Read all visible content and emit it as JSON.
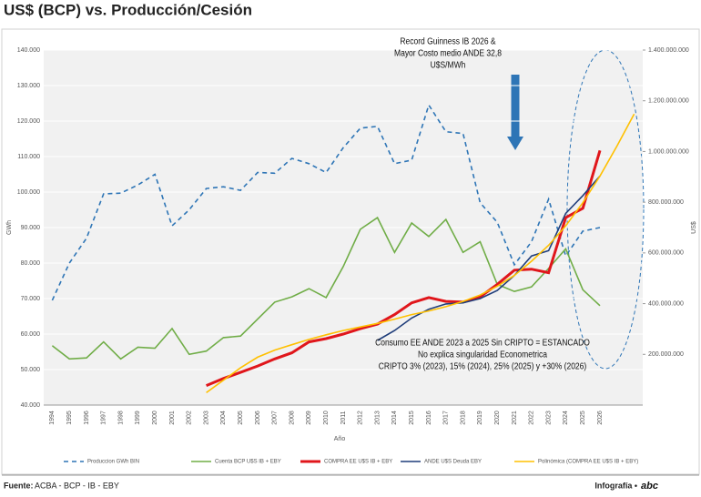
{
  "chart_data": {
    "type": "line",
    "title": "US$ (BCP) vs. Producción/Cesión",
    "ylabel": "GWh",
    "y2label": "US$",
    "xlabel": "Año",
    "categories": [
      "1994",
      "1995",
      "1996",
      "1997",
      "1998",
      "1999",
      "2000",
      "2001",
      "2002",
      "2003",
      "2004",
      "2005",
      "2006",
      "2007",
      "2008",
      "2009",
      "2010",
      "2011",
      "2012",
      "2013",
      "2014",
      "2015",
      "2016",
      "2017",
      "2018",
      "2019",
      "2020",
      "2021",
      "2022",
      "2023",
      "2024",
      "2025",
      "2026",
      null,
      null
    ],
    "ylim": [
      40000,
      140000
    ],
    "yticks": [
      {
        "value": 40000,
        "label": "40.000"
      },
      {
        "value": 50000,
        "label": "50.000"
      },
      {
        "value": 60000,
        "label": "60.000"
      },
      {
        "value": 70000,
        "label": "70.000"
      },
      {
        "value": 80000,
        "label": "80.000"
      },
      {
        "value": 90000,
        "label": "90.000"
      },
      {
        "value": 100000,
        "label": "100.000"
      },
      {
        "value": 110000,
        "label": "110.000"
      },
      {
        "value": 120000,
        "label": "120.000"
      },
      {
        "value": 130000,
        "label": "130.000"
      },
      {
        "value": 140000,
        "label": "140.000"
      }
    ],
    "y2lim": [
      0,
      1400000000
    ],
    "y2ticks": [
      {
        "value": 200000000,
        "label": "200.000.000"
      },
      {
        "value": 400000000,
        "label": "400.000.000"
      },
      {
        "value": 600000000,
        "label": "600.000.000"
      },
      {
        "value": 800000000,
        "label": "800.000.000"
      },
      {
        "value": 1000000000,
        "label": "1.000.000.000"
      },
      {
        "value": 1200000000,
        "label": "1.200.000.000"
      },
      {
        "value": 1400000000,
        "label": "1.400.000.000"
      }
    ],
    "grid": true,
    "series": [
      {
        "name": "Produccion GWh BIN",
        "color": "#2e75b6",
        "dash": true,
        "values": [
          69500,
          80000,
          87000,
          99500,
          99700,
          102000,
          105000,
          90500,
          95000,
          101000,
          101500,
          100500,
          105500,
          105300,
          109500,
          108000,
          105500,
          112500,
          118000,
          118500,
          108000,
          109000,
          124500,
          117000,
          116500,
          97000,
          91500,
          79500,
          86000,
          98000,
          82000,
          89000,
          90000,
          null,
          null
        ]
      },
      {
        "name": "Cuenta BCP  U$S IB + EBY",
        "color": "#70ad47",
        "axis": "y2",
        "values": [
          234000000,
          182000000,
          186000000,
          249000000,
          182000000,
          228000000,
          224000000,
          302000000,
          200000000,
          213000000,
          266000000,
          272000000,
          339000000,
          406000000,
          427000000,
          459000000,
          424000000,
          546000000,
          693000000,
          739000000,
          602000000,
          718000000,
          665000000,
          732000000,
          602000000,
          644000000,
          476000000,
          448000000,
          466000000,
          539000000,
          616000000,
          455000000,
          392000000,
          null,
          null
        ]
      },
      {
        "name": "COMPRA EE U$S IB + EBY",
        "color": "#e0161b",
        "axis": "y2",
        "width": 3,
        "values": [
          null,
          null,
          null,
          null,
          null,
          null,
          null,
          null,
          null,
          77000000,
          105000000,
          129000000,
          154000000,
          182000000,
          206000000,
          249000000,
          262000000,
          280000000,
          301000000,
          319000000,
          357000000,
          403000000,
          424000000,
          409000000,
          406000000,
          427000000,
          476000000,
          532000000,
          536000000,
          522000000,
          739000000,
          776000000,
          1004000000,
          null,
          null
        ]
      },
      {
        "name": "ANDE U$S Deuda EBY",
        "color": "#1f3d7a",
        "axis": "y2",
        "values": [
          null,
          null,
          null,
          null,
          null,
          null,
          null,
          null,
          null,
          null,
          null,
          null,
          null,
          null,
          null,
          null,
          null,
          null,
          null,
          255000000,
          294000000,
          343000000,
          378000000,
          399000000,
          403000000,
          420000000,
          452000000,
          511000000,
          588000000,
          609000000,
          756000000,
          826000000,
          903000000,
          null,
          null
        ]
      },
      {
        "name": "Polinómica (COMPRA EE U$S IB + EBY)",
        "color": "#ffc000",
        "axis": "y2",
        "values": [
          null,
          null,
          null,
          null,
          null,
          null,
          null,
          null,
          null,
          49000000,
          98000000,
          147000000,
          189000000,
          217000000,
          238000000,
          259000000,
          277000000,
          294000000,
          308000000,
          322000000,
          339000000,
          357000000,
          371000000,
          388000000,
          409000000,
          434000000,
          469000000,
          511000000,
          567000000,
          630000000,
          707000000,
          798000000,
          903000000,
          1022000000,
          1148000000
        ]
      }
    ],
    "annotations": [
      [
        "Record Guinness IB 2026 &",
        "Mayor Costo medio ANDE 32,8",
        "U$S/MWh"
      ],
      [
        "Consumo EE ANDE 2023 a 2025 Sin CRIPTO = ESTANCADO",
        "No explica singularidad Econometrica",
        "CRIPTO 3% (2023), 15% (2024), 25% (2025) y +30% (2026)"
      ]
    ]
  },
  "footer": {
    "source_label": "Fuente:",
    "source": "ACBA - BCP - IB - EBY",
    "credit": "Infografía •",
    "logo": "abc"
  }
}
